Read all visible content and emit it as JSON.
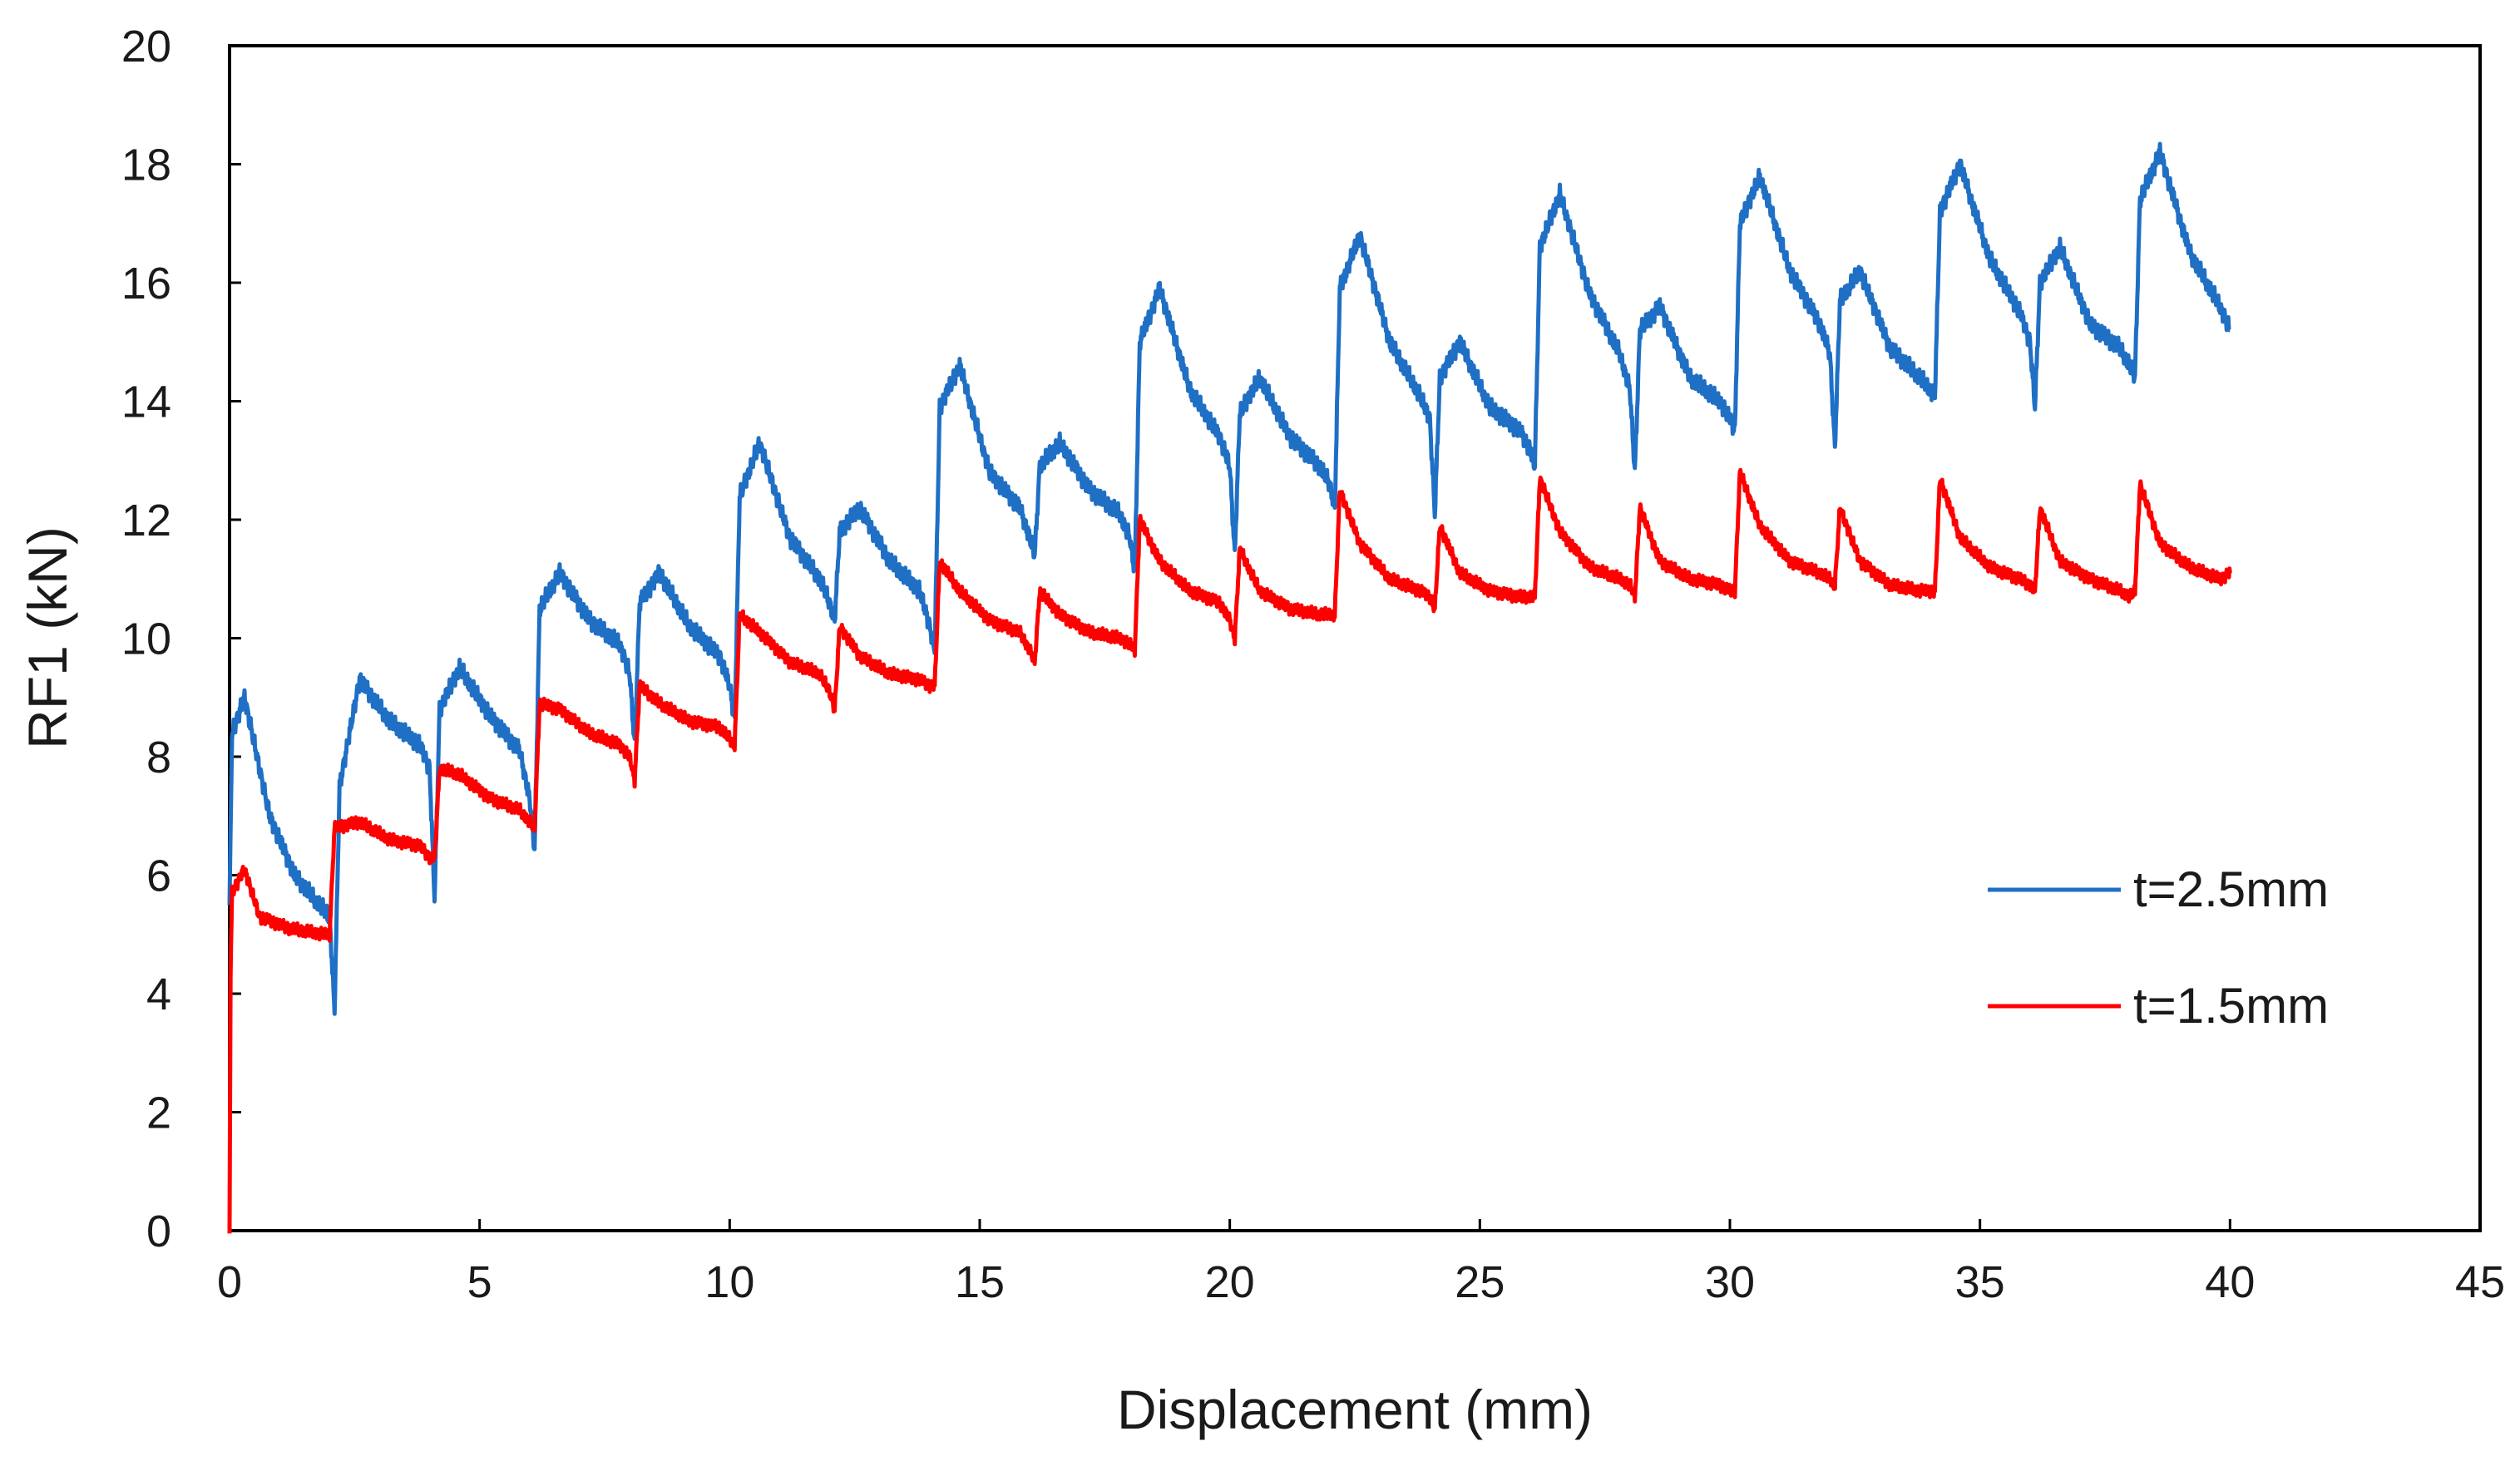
{
  "chart_data": {
    "type": "line",
    "title": "",
    "xlabel": "Displacement (mm)",
    "ylabel": "RF1 (kN)",
    "xlim": [
      0,
      45
    ],
    "ylim": [
      0,
      20
    ],
    "xticks": [
      0,
      5,
      10,
      15,
      20,
      25,
      30,
      35,
      40,
      45
    ],
    "xtick_labels": [
      "0",
      "5",
      "10",
      "15",
      "20",
      "25",
      "30",
      "35",
      "40",
      "45"
    ],
    "yticks": [
      0,
      2,
      4,
      6,
      8,
      10,
      12,
      14,
      16,
      18,
      20
    ],
    "ytick_labels": [
      "0",
      "2",
      "4",
      "6",
      "8",
      "10",
      "12",
      "14",
      "16",
      "18",
      "20"
    ],
    "grid": false,
    "legend_position": "right-middle",
    "series": [
      {
        "name": "t=2.5mm",
        "color": "#1f6fc5",
        "x": [
          0.0,
          0.05,
          0.3,
          0.8,
          1.3,
          1.8,
          2.0,
          2.1,
          2.2,
          2.6,
          3.2,
          3.8,
          4.0,
          4.1,
          4.2,
          4.6,
          5.2,
          5.8,
          6.0,
          6.1,
          6.2,
          6.6,
          7.2,
          7.8,
          8.0,
          8.1,
          8.2,
          8.6,
          9.2,
          9.8,
          10.0,
          10.1,
          10.2,
          10.6,
          11.2,
          11.8,
          12.0,
          12.1,
          12.2,
          12.6,
          13.2,
          13.8,
          14.0,
          14.1,
          14.2,
          14.6,
          15.2,
          15.8,
          16.0,
          16.1,
          16.2,
          16.6,
          17.2,
          17.8,
          18.0,
          18.1,
          18.2,
          18.6,
          19.2,
          19.8,
          20.0,
          20.1,
          20.2,
          20.6,
          21.2,
          21.8,
          22.0,
          22.1,
          22.2,
          22.6,
          23.2,
          23.8,
          24.0,
          24.1,
          24.2,
          24.6,
          25.2,
          25.8,
          26.0,
          26.1,
          26.2,
          26.6,
          27.2,
          27.8,
          28.0,
          28.1,
          28.2,
          28.6,
          29.2,
          29.8,
          30.0,
          30.1,
          30.2,
          30.6,
          31.2,
          31.8,
          32.0,
          32.1,
          32.2,
          32.6,
          33.2,
          33.8,
          34.0,
          34.1,
          34.2,
          34.6,
          35.2,
          35.8,
          36.0,
          36.1,
          36.2,
          36.6,
          37.2,
          37.8,
          38.0,
          38.1,
          38.2,
          38.6,
          39.2,
          39.8,
          40.0
        ],
        "y": [
          5.5,
          8.4,
          9.0,
          7.0,
          6.0,
          5.5,
          5.3,
          3.7,
          7.5,
          9.3,
          8.6,
          8.2,
          7.8,
          5.6,
          8.8,
          9.5,
          8.7,
          8.1,
          7.3,
          6.4,
          10.5,
          11.1,
          10.3,
          9.9,
          9.4,
          8.2,
          10.6,
          11.1,
          10.2,
          9.7,
          9.2,
          8.6,
          12.4,
          13.3,
          11.7,
          11.0,
          10.6,
          10.3,
          11.8,
          12.2,
          11.3,
          10.8,
          10.2,
          9.8,
          13.9,
          14.6,
          12.8,
          12.2,
          11.7,
          11.4,
          12.9,
          13.3,
          12.5,
          12.1,
          11.7,
          11.1,
          15.0,
          15.9,
          14.2,
          13.4,
          12.9,
          11.4,
          13.8,
          14.4,
          13.4,
          12.9,
          12.6,
          12.2,
          15.9,
          16.8,
          15.0,
          14.1,
          13.7,
          12.1,
          14.4,
          15.0,
          13.9,
          13.5,
          13.2,
          12.9,
          16.6,
          17.5,
          15.8,
          14.8,
          14.2,
          12.8,
          15.2,
          15.6,
          14.4,
          14.0,
          13.7,
          13.5,
          17.0,
          17.8,
          16.2,
          15.3,
          14.8,
          13.2,
          15.7,
          16.2,
          14.9,
          14.4,
          14.2,
          14.1,
          17.2,
          18.0,
          16.4,
          15.5,
          15.0,
          13.9,
          16.0,
          16.6,
          15.3,
          14.9,
          14.6,
          14.4,
          17.4,
          18.2,
          16.5,
          15.6,
          15.2
        ]
      },
      {
        "name": "t=1.5mm",
        "color": "#ff0000",
        "x": [
          0.0,
          0.02,
          0.05,
          0.3,
          0.6,
          1.2,
          1.9,
          2.0,
          2.1,
          2.6,
          3.2,
          3.8,
          4.0,
          4.1,
          4.2,
          4.6,
          5.2,
          5.8,
          6.0,
          6.1,
          6.2,
          6.6,
          7.2,
          7.8,
          8.0,
          8.1,
          8.2,
          8.6,
          9.2,
          9.8,
          10.0,
          10.1,
          10.2,
          10.6,
          11.2,
          11.8,
          12.0,
          12.1,
          12.2,
          12.6,
          13.2,
          13.8,
          14.0,
          14.1,
          14.2,
          14.6,
          15.2,
          15.8,
          16.0,
          16.1,
          16.2,
          16.6,
          17.2,
          17.8,
          18.0,
          18.1,
          18.2,
          18.6,
          19.2,
          19.8,
          20.0,
          20.1,
          20.2,
          20.6,
          21.2,
          21.8,
          22.0,
          22.1,
          22.2,
          22.6,
          23.2,
          23.8,
          24.0,
          24.1,
          24.2,
          24.6,
          25.2,
          25.8,
          26.0,
          26.1,
          26.2,
          26.6,
          27.2,
          27.8,
          28.0,
          28.1,
          28.2,
          28.6,
          29.2,
          29.8,
          30.0,
          30.1,
          30.2,
          30.6,
          31.2,
          31.8,
          32.0,
          32.1,
          32.2,
          32.6,
          33.2,
          33.8,
          34.0,
          34.1,
          34.2,
          34.6,
          35.2,
          35.8,
          36.0,
          36.1,
          36.2,
          36.6,
          37.2,
          37.8,
          38.0,
          38.1,
          38.2,
          38.6,
          39.2,
          39.8,
          40.0
        ],
        "y": [
          0.0,
          4.4,
          5.7,
          6.1,
          5.3,
          5.1,
          5.0,
          5.0,
          6.8,
          6.9,
          6.6,
          6.5,
          6.3,
          6.3,
          7.8,
          7.7,
          7.3,
          7.1,
          6.9,
          6.8,
          8.9,
          8.8,
          8.4,
          8.2,
          8.0,
          7.6,
          9.2,
          8.9,
          8.6,
          8.5,
          8.3,
          8.2,
          10.4,
          10.1,
          9.6,
          9.4,
          9.1,
          8.8,
          10.2,
          9.7,
          9.4,
          9.3,
          9.2,
          9.2,
          11.3,
          10.8,
          10.3,
          10.1,
          9.8,
          9.6,
          10.8,
          10.4,
          10.1,
          10.0,
          9.9,
          9.8,
          12.0,
          11.3,
          10.8,
          10.6,
          10.3,
          10.0,
          11.5,
          10.8,
          10.5,
          10.4,
          10.4,
          10.4,
          12.5,
          11.6,
          11.0,
          10.8,
          10.7,
          10.5,
          11.9,
          11.1,
          10.8,
          10.7,
          10.7,
          10.7,
          12.7,
          11.8,
          11.2,
          11.0,
          10.9,
          10.7,
          12.2,
          11.3,
          11.0,
          10.9,
          10.8,
          10.8,
          12.8,
          11.9,
          11.3,
          11.1,
          11.0,
          10.9,
          12.2,
          11.3,
          10.9,
          10.8,
          10.8,
          10.8,
          12.7,
          11.7,
          11.2,
          11.0,
          10.9,
          10.8,
          12.2,
          11.3,
          11.0,
          10.8,
          10.7,
          10.8,
          12.6,
          11.6,
          11.2,
          11.0,
          11.1
        ]
      }
    ]
  }
}
